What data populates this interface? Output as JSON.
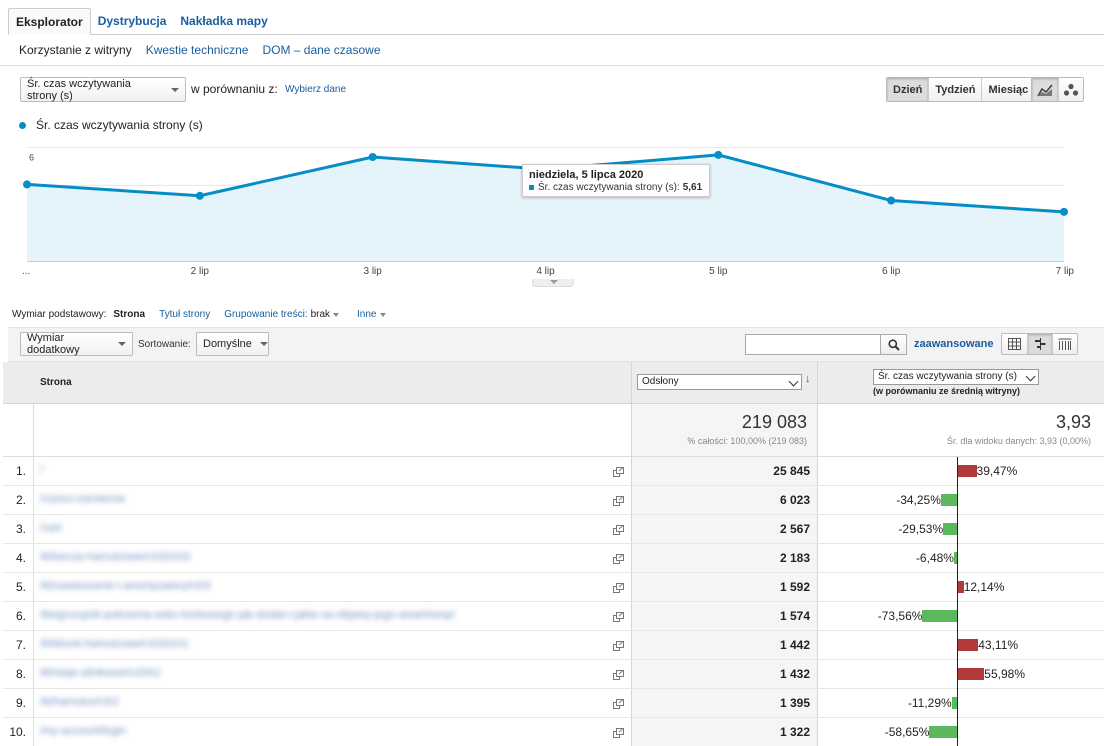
{
  "tabs": [
    {
      "label": "Eksplorator",
      "active": true
    },
    {
      "label": "Dystrybucja",
      "active": false
    },
    {
      "label": "Nakładka mapy",
      "active": false
    }
  ],
  "subtabs": [
    {
      "label": "Korzystanie z witryny",
      "active": true
    },
    {
      "label": "Kwestie techniczne",
      "active": false
    },
    {
      "label": "DOM – dane czasowe",
      "active": false
    }
  ],
  "controls": {
    "metric_select": "Śr. czas wczytywania strony (s)",
    "compare_label": "w porównaniu z:",
    "choose_data": "Wybierz dane",
    "granularity": [
      {
        "label": "Dzień",
        "active": true
      },
      {
        "label": "Tydzień",
        "active": false
      },
      {
        "label": "Miesiąc",
        "active": false
      }
    ],
    "chart_type_icons": [
      "line-chart-icon",
      "motion-chart-icon"
    ]
  },
  "chart_data": {
    "type": "area",
    "series": [
      {
        "name": "Śr. czas wczytywania strony (s)",
        "color": "#058dc7",
        "values": [
          4.05,
          3.45,
          5.5,
          4.85,
          5.61,
          3.2,
          2.6
        ]
      }
    ],
    "x_labels": [
      "...",
      "2 lip",
      "3 lip",
      "4 lip",
      "5 lip",
      "6 lip",
      "7 lip"
    ],
    "y_ticks": [
      2,
      4,
      6
    ],
    "ylim": [
      0,
      6.4
    ],
    "grid": true,
    "tooltip": {
      "date": "niedziela, 5 lipca 2020",
      "label": "Śr. czas wczytywania strony (s):",
      "value": "5,61"
    }
  },
  "dimension": {
    "label": "Wymiar podstawowy:",
    "current": "Strona",
    "options": [
      "Tytuł strony"
    ],
    "grouping_label": "Grupowanie treści:",
    "grouping_value": "brak",
    "other": "Inne"
  },
  "toolbar": {
    "secondary_dim": "Wymiar dodatkowy",
    "sort_label": "Sortowanie:",
    "sort_value": "Domyślne",
    "search_placeholder": "",
    "advanced": "zaawansowane",
    "view_icons": [
      "table-view-icon",
      "comparison-view-icon",
      "pivot-view-icon"
    ]
  },
  "table": {
    "col_page": "Strona",
    "col_views_select": "Odsłony",
    "col_compare_select": "Śr. czas wczytywania strony (s)",
    "col_compare_note": "(w porównaniu ze średnią witryny)",
    "totals": {
      "views": "219 083",
      "views_sub": "% całości: 100,00% (219 083)",
      "avg": "3,93",
      "avg_sub": "Śr. dla widoku danych: 3,93 (0,00%)"
    },
    "rows": [
      {
        "n": "1.",
        "page": "/",
        "views": "25 845",
        "pct_label": "39,47%",
        "pct": 39.47
      },
      {
        "n": "2.",
        "page": "/czesci-zamienne",
        "views": "6 023",
        "pct_label": "-34,25%",
        "pct": -34.25
      },
      {
        "n": "3.",
        "page": "/cart",
        "views": "2 567",
        "pct_label": "-29,53%",
        "pct": -29.53
      },
      {
        "n": "4.",
        "page": "/kl/tarcze-hamulcowe/U020102",
        "views": "2 183",
        "pct_label": "-6,48%",
        "pct": -6.48
      },
      {
        "n": "5.",
        "page": "/kl/zawieszenie-i-amortyzatory/U03",
        "views": "1 592",
        "pct_label": "12,14%",
        "pct": 12.14
      },
      {
        "n": "6.",
        "page": "/blog/czujnik-polozenia-walu-korbowego-jak-dziala-i-jakie-sa-objawy-jego-awarii/amp/",
        "views": "1 574",
        "pct_label": "-73,56%",
        "pct": -73.56
      },
      {
        "n": "7.",
        "page": "/kl/klocki-hamulcowe/U020101",
        "views": "1 442",
        "pct_label": "43,11%",
        "pct": 43.11
      },
      {
        "n": "8.",
        "page": "/kl/oleje-silnikowe/U2001",
        "views": "1 432",
        "pct_label": "55,98%",
        "pct": 55.98
      },
      {
        "n": "9.",
        "page": "/kl/hamulce/U02",
        "views": "1 395",
        "pct_label": "-11,29%",
        "pct": -11.29
      },
      {
        "n": "10.",
        "page": "/my-account/login",
        "views": "1 322",
        "pct_label": "-58,65%",
        "pct": -58.65
      }
    ]
  }
}
